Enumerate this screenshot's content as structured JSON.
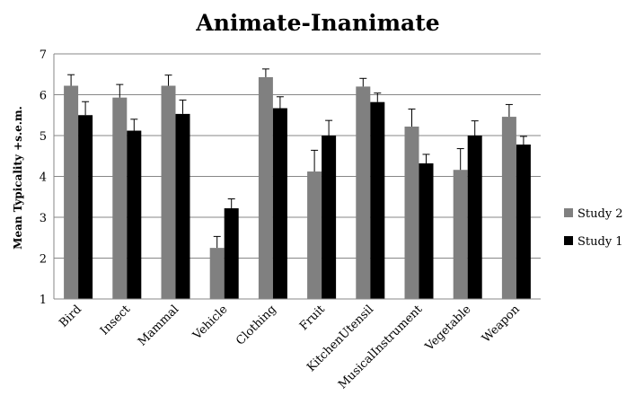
{
  "chart_data": {
    "type": "bar",
    "title": "Animate-Inanimate",
    "xlabel": "",
    "ylabel": "Mean Typicality +s.e.m.",
    "ylim": [
      1,
      7
    ],
    "yticks": [
      1,
      2,
      3,
      4,
      5,
      6,
      7
    ],
    "grid": true,
    "legend_position": "right",
    "categories": [
      "Bird",
      "Insect",
      "Mammal",
      "Vehicle",
      "Clothing",
      "Fruit",
      "KitchenUtensil",
      "MusicalInstrument",
      "Vegetable",
      "Weapon"
    ],
    "series": [
      {
        "name": "Study 2",
        "color": "#808080",
        "values": [
          6.22,
          5.93,
          6.22,
          2.25,
          6.43,
          4.12,
          6.2,
          5.22,
          4.16,
          5.46
        ],
        "errors": [
          0.27,
          0.32,
          0.26,
          0.28,
          0.2,
          0.52,
          0.2,
          0.43,
          0.52,
          0.3
        ]
      },
      {
        "name": "Study 1",
        "color": "#000000",
        "values": [
          5.5,
          5.12,
          5.53,
          3.22,
          5.67,
          5.0,
          5.82,
          4.32,
          5.0,
          4.78
        ],
        "errors": [
          0.33,
          0.28,
          0.34,
          0.23,
          0.28,
          0.37,
          0.22,
          0.22,
          0.36,
          0.2
        ]
      }
    ]
  }
}
